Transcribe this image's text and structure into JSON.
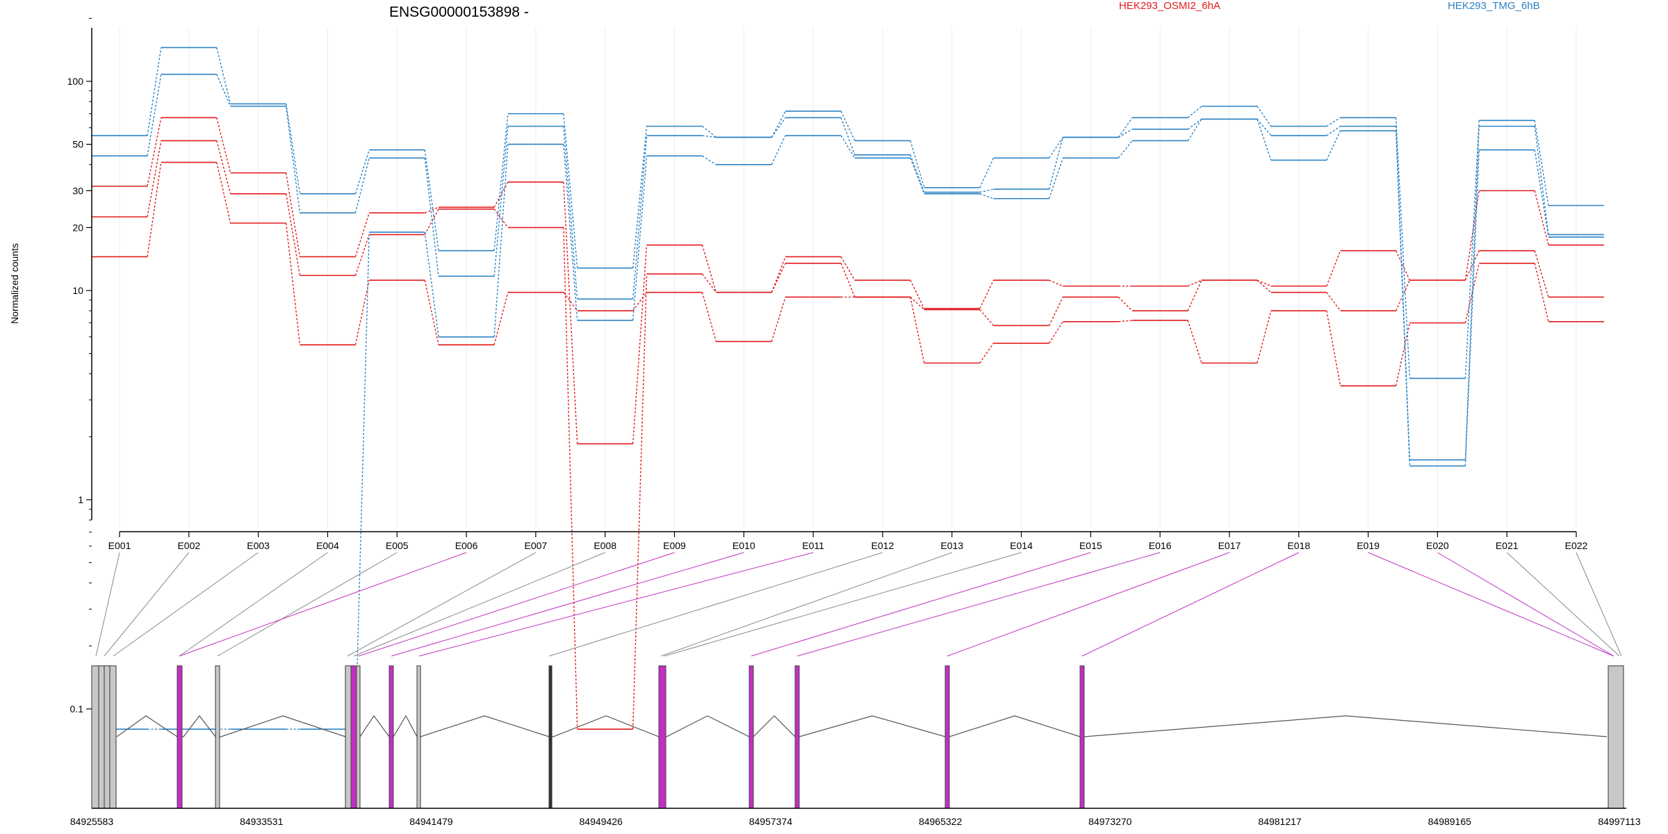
{
  "chart_data": {
    "type": "line",
    "title": "ENSG00000153898 -",
    "ylabel": "Normalized counts",
    "yscale": "log",
    "ylim": [
      0.075,
      260
    ],
    "y_ticks": [
      0.1,
      1,
      10,
      20,
      30,
      50,
      100
    ],
    "y_tick_labels": [
      "0.1",
      "1",
      "10",
      "20",
      "30",
      "50",
      "100"
    ],
    "categories": [
      "E001",
      "E002",
      "E003",
      "E004",
      "E005",
      "E006",
      "E007",
      "E008",
      "E009",
      "E010",
      "E011",
      "E012",
      "E013",
      "E014",
      "E015",
      "E016",
      "E017",
      "E018",
      "E019",
      "E020",
      "E021",
      "E022"
    ],
    "legend": [
      {
        "name": "HEK293_OSMI2_6hA",
        "color": "#e31a1c"
      },
      {
        "name": "HEK293_TMG_6hB",
        "color": "#2b83c6"
      }
    ],
    "series": [
      {
        "group": "HEK293_OSMI2_6hA",
        "color": "#e31a1c",
        "values": [
          31.5,
          67,
          36.5,
          14.5,
          23.5,
          25,
          33,
          1.85,
          16.5,
          9.8,
          14.5,
          11.2,
          8.2,
          11.2,
          10.5,
          10.5,
          11.2,
          10.5,
          15.5,
          11.2,
          30,
          16.5
        ]
      },
      {
        "group": "HEK293_OSMI2_6hA",
        "color": "#e31a1c",
        "values": [
          22.5,
          52,
          29,
          11.8,
          18.5,
          24.5,
          20,
          0.08,
          12,
          9.8,
          13.5,
          9.3,
          8.1,
          6.8,
          9.3,
          8.0,
          11.2,
          9.8,
          8.0,
          11.2,
          15.5,
          9.3
        ]
      },
      {
        "group": "HEK293_OSMI2_6hA",
        "color": "#e31a1c",
        "values": [
          14.5,
          41,
          21,
          5.5,
          11.2,
          5.5,
          9.8,
          8.0,
          9.8,
          5.7,
          9.3,
          9.3,
          4.5,
          5.6,
          7.1,
          7.2,
          4.5,
          8.0,
          3.5,
          7.0,
          13.5,
          7.1
        ]
      },
      {
        "group": "HEK293_TMG_6hB",
        "color": "#2b83c6",
        "values": [
          55,
          145,
          78,
          29,
          47,
          15.5,
          70,
          12.8,
          61,
          54,
          72,
          52,
          31,
          43,
          54,
          67,
          76,
          61,
          67,
          3.8,
          65,
          25.5
        ]
      },
      {
        "group": "HEK293_TMG_6hB",
        "color": "#2b83c6",
        "values": [
          44,
          108,
          76,
          23.5,
          43,
          11.7,
          61,
          9.1,
          55,
          54,
          67,
          44.5,
          29.5,
          30.5,
          54,
          59,
          66,
          55,
          61,
          1.55,
          61,
          18.5
        ]
      },
      {
        "group": "HEK293_TMG_6hB",
        "color": "#2b83c6",
        "values": [
          0.08,
          0.08,
          0.08,
          0.08,
          19,
          6.0,
          50,
          7.2,
          44,
          40,
          55,
          43,
          29,
          27.5,
          43,
          52,
          66,
          42,
          58,
          1.45,
          47,
          18
        ]
      }
    ],
    "genomic_coordinates": [
      "84925583",
      "84933531",
      "84941479",
      "84949426",
      "84957374",
      "84965322",
      "84973270",
      "84981217",
      "84989165",
      "84997113"
    ],
    "exons_highlighted": [
      "E006",
      "E009",
      "E010",
      "E011",
      "E015",
      "E016",
      "E017",
      "E018",
      "E019",
      "E020"
    ],
    "highlight_color": "#c22fc2"
  }
}
